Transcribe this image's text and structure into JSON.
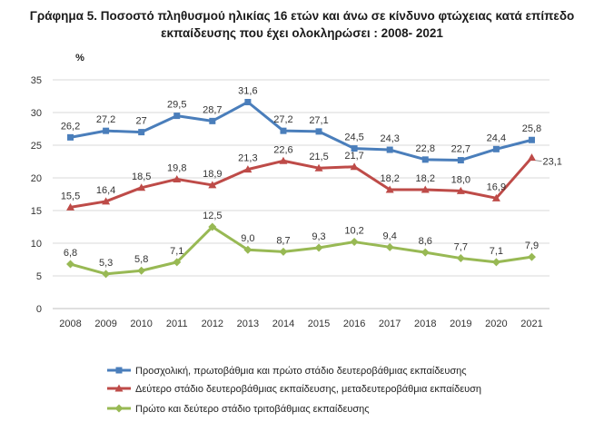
{
  "chart_data": {
    "type": "line",
    "title": "Γράφημα 5. Ποσοστό πληθυσμού ηλικίας 16 ετών και άνω σε κίνδυνο φτώχειας κατά επίπεδο εκπαίδευσης που έχει ολοκληρώσει : 2008- 2021",
    "unit_label": "%",
    "x": [
      "2008",
      "2009",
      "2010",
      "2011",
      "2012",
      "2013",
      "2014",
      "2015",
      "2016",
      "2017",
      "2018",
      "2019",
      "2020",
      "2021"
    ],
    "ylim": [
      0,
      35
    ],
    "yticks": [
      0,
      5,
      10,
      15,
      20,
      25,
      30,
      35
    ],
    "grid": true,
    "legend_position": "bottom",
    "series": [
      {
        "name": "Προσχολική, πρωτοβάθμια και πρώτο στάδιο δευτεροβάθμιας εκπαίδευσης",
        "color": "#4a7ebb",
        "marker": "square",
        "values": [
          26.2,
          27.2,
          27.0,
          29.5,
          28.7,
          31.6,
          27.2,
          27.1,
          24.5,
          24.3,
          22.8,
          22.7,
          24.4,
          25.8
        ],
        "labels": [
          "26,2",
          "27,2",
          "27",
          "29,5",
          "28,7",
          "31,6",
          "27,2",
          "27,1",
          "24,5",
          "24,3",
          "22,8",
          "22,7",
          "24,4",
          "25,8"
        ]
      },
      {
        "name": "Δεύτερο στάδιο δευτεροβάθμιας εκπαίδευσης, μεταδευτεροβάθμια εκπαίδευση",
        "color": "#be4b48",
        "marker": "triangle",
        "values": [
          15.5,
          16.4,
          18.5,
          19.8,
          18.9,
          21.3,
          22.6,
          21.5,
          21.7,
          18.2,
          18.2,
          18.0,
          16.9,
          23.1
        ],
        "labels": [
          "15,5",
          "16,4",
          "18,5",
          "19,8",
          "18,9",
          "21,3",
          "22,6",
          "21,5",
          "21,7",
          "18,2",
          "18,2",
          "18,0",
          "16,9",
          "23,1"
        ]
      },
      {
        "name": "Πρώτο και δεύτερο στάδιο τριτοβάθμιας εκπαίδευσης",
        "color": "#98b954",
        "marker": "diamond",
        "values": [
          6.8,
          5.3,
          5.8,
          7.1,
          12.5,
          9.0,
          8.7,
          9.3,
          10.2,
          9.4,
          8.6,
          7.7,
          7.1,
          7.9
        ],
        "labels": [
          "6,8",
          "5,3",
          "5,8",
          "7,1",
          "12,5",
          "9,0",
          "8,7",
          "9,3",
          "10,2",
          "9,4",
          "8,6",
          "7,7",
          "7,1",
          "7,9"
        ]
      }
    ]
  }
}
